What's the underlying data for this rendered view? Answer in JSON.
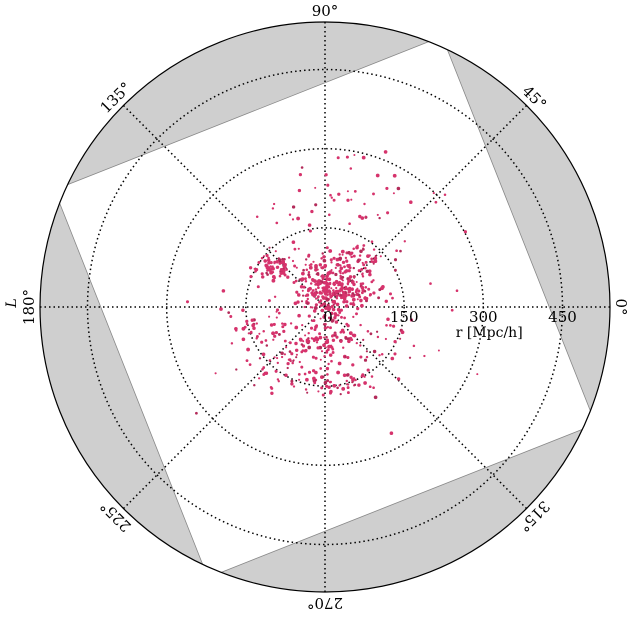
{
  "chart_data": {
    "type": "scatter",
    "projection": "polar",
    "angle_ticks": [
      {
        "deg": 0,
        "label": "0°"
      },
      {
        "deg": 45,
        "label": "45°"
      },
      {
        "deg": 90,
        "label": "90°"
      },
      {
        "deg": 135,
        "label": "135°"
      },
      {
        "deg": 180,
        "label": "180°"
      },
      {
        "deg": 225,
        "label": "225°"
      },
      {
        "deg": 270,
        "label": "270°"
      },
      {
        "deg": 315,
        "label": "315°"
      }
    ],
    "radial_ticks": [
      {
        "r": 0,
        "label": "0"
      },
      {
        "r": 150,
        "label": "150"
      },
      {
        "r": 300,
        "label": "300"
      },
      {
        "r": 450,
        "label": "450"
      }
    ],
    "angle_axis_label": "L",
    "radial_axis_label": "r [Mpc/h]",
    "rmax": 540,
    "grid": true,
    "survey_footprint": {
      "shape": "square",
      "half_width": 395,
      "rotation_deg": 21.6
    },
    "clusters": [
      {
        "x": 10,
        "y": 25,
        "n": 220,
        "sx": 30,
        "sy": 22
      },
      {
        "x": -100,
        "y": 75,
        "n": 70,
        "sx": 20,
        "sy": 12
      },
      {
        "x": 50,
        "y": 95,
        "n": 70,
        "sx": 35,
        "sy": 15
      },
      {
        "x": -20,
        "y": 70,
        "n": 40,
        "sx": 30,
        "sy": 15
      },
      {
        "x": -5,
        "y": -60,
        "n": 110,
        "sx": 45,
        "sy": 25
      },
      {
        "x": 15,
        "y": -145,
        "n": 55,
        "sx": 40,
        "sy": 12
      },
      {
        "x": -130,
        "y": -45,
        "n": 40,
        "sx": 30,
        "sy": 25
      },
      {
        "x": -80,
        "y": -110,
        "n": 35,
        "sx": 35,
        "sy": 20
      },
      {
        "x": 30,
        "y": 200,
        "n": 55,
        "sx": 110,
        "sy": 55
      },
      {
        "x": 0,
        "y": 0,
        "n": 80,
        "sx": 120,
        "sy": 100
      },
      {
        "x": 90,
        "y": -80,
        "n": 25,
        "sx": 35,
        "sy": 30
      },
      {
        "x": 60,
        "y": 30,
        "n": 50,
        "sx": 25,
        "sy": 18
      }
    ]
  }
}
